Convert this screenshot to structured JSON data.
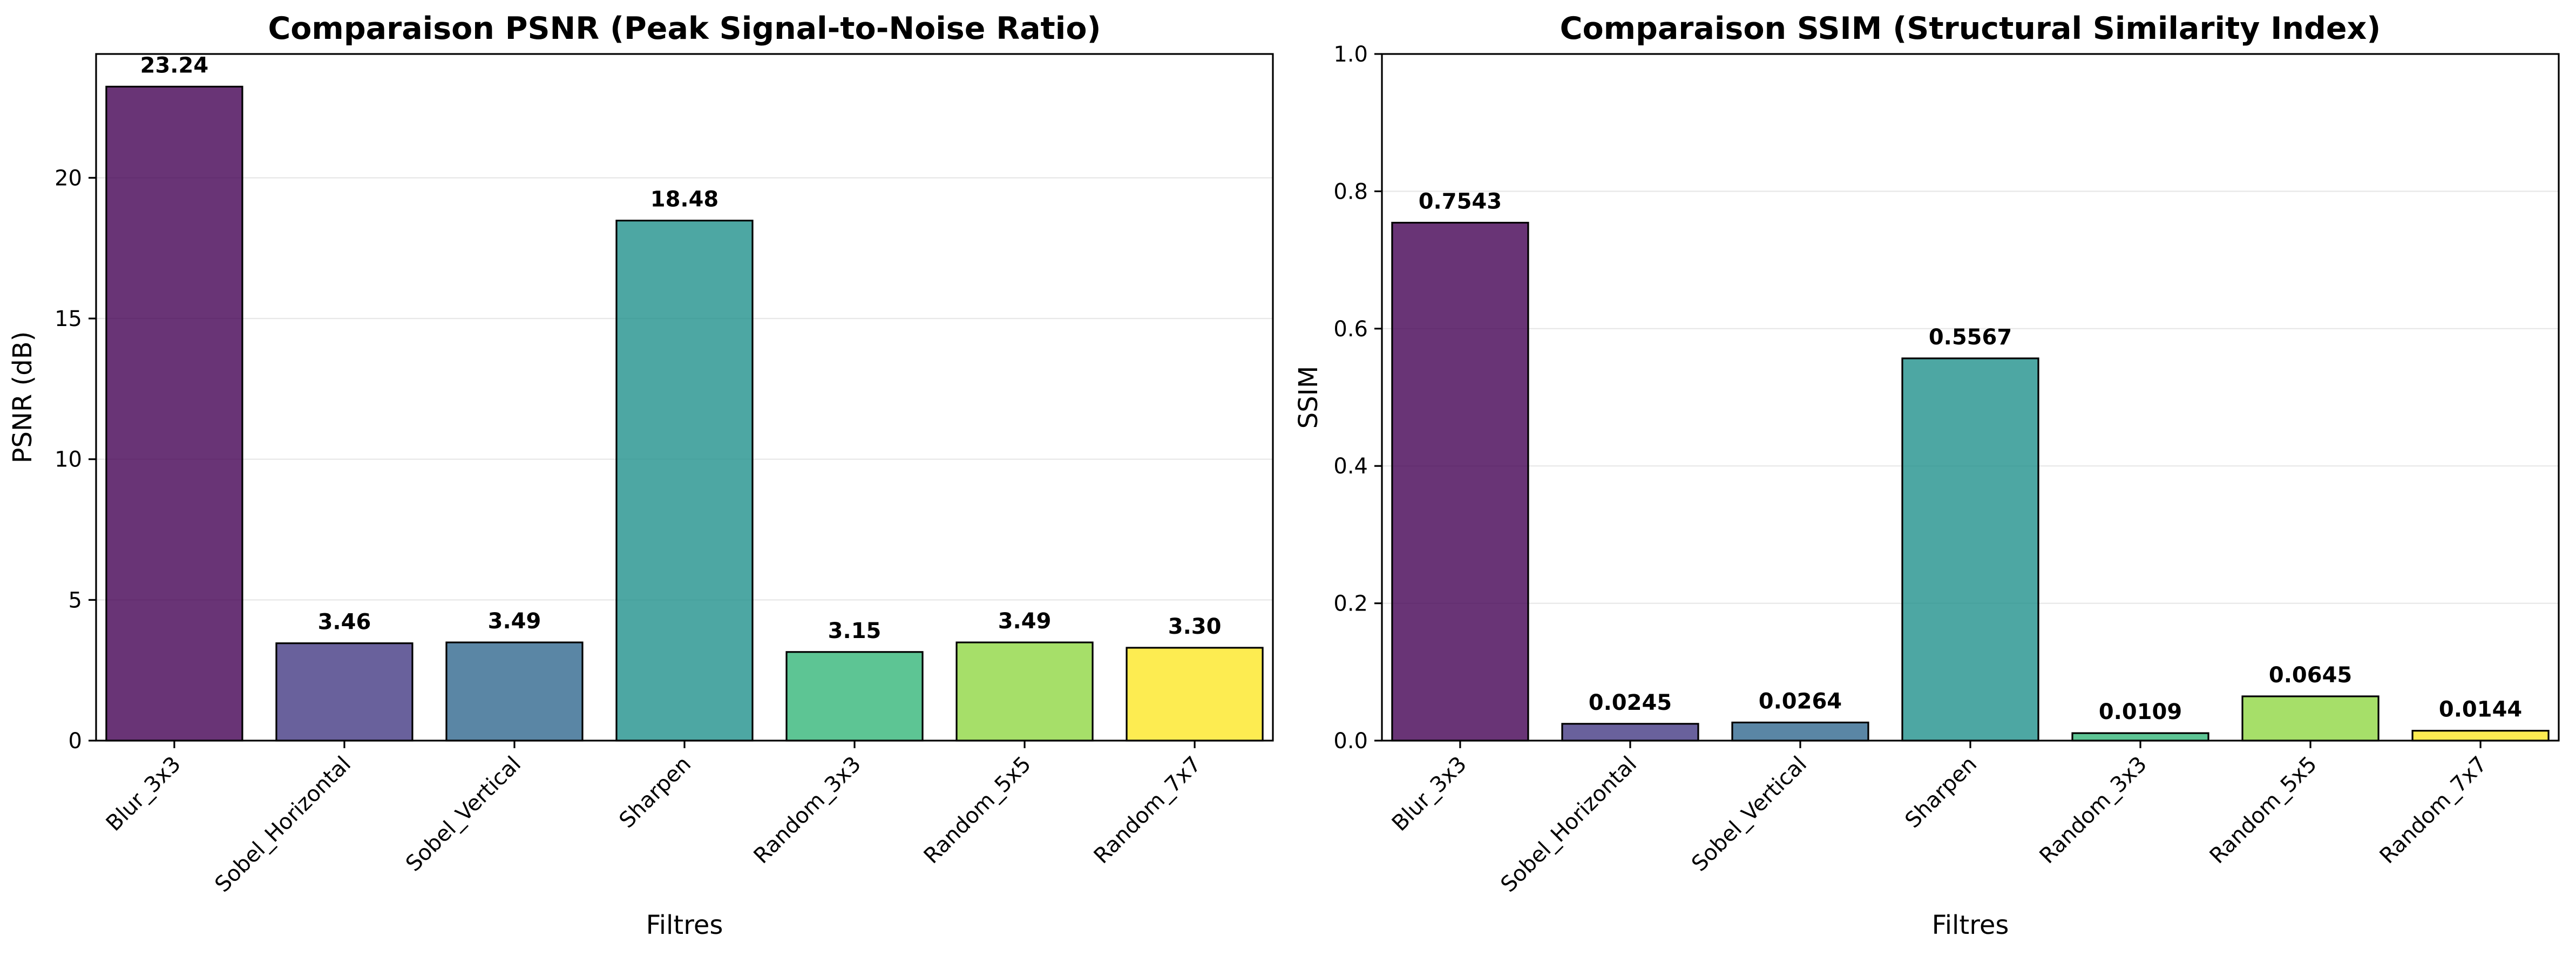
{
  "chart_data": [
    {
      "type": "bar",
      "title": "Comparaison PSNR (Peak Signal-to-Noise Ratio)",
      "xlabel": "Filtres",
      "ylabel": "PSNR (dB)",
      "categories": [
        "Blur_3x3",
        "Sobel_Horizontal",
        "Sobel_Vertical",
        "Sharpen",
        "Random_3x3",
        "Random_5x5",
        "Random_7x7"
      ],
      "values": [
        23.24,
        3.46,
        3.49,
        18.48,
        3.15,
        3.49,
        3.3
      ],
      "value_labels": [
        "23.24",
        "3.46",
        "3.49",
        "18.48",
        "3.15",
        "3.49",
        "3.30"
      ],
      "ylim": [
        0,
        24.4
      ],
      "yticks": [
        0,
        5,
        10,
        15,
        20
      ],
      "ytick_labels": [
        "0",
        "5",
        "10",
        "15",
        "20"
      ],
      "grid": true,
      "colors": [
        "#440154",
        "#443983",
        "#31688e",
        "#21918c",
        "#35b779",
        "#90d743",
        "#fde725"
      ]
    },
    {
      "type": "bar",
      "title": "Comparaison SSIM (Structural Similarity Index)",
      "xlabel": "Filtres",
      "ylabel": "SSIM",
      "categories": [
        "Blur_3x3",
        "Sobel_Horizontal",
        "Sobel_Vertical",
        "Sharpen",
        "Random_3x3",
        "Random_5x5",
        "Random_7x7"
      ],
      "values": [
        0.7543,
        0.0245,
        0.0264,
        0.5567,
        0.0109,
        0.0645,
        0.0144
      ],
      "value_labels": [
        "0.7543",
        "0.0245",
        "0.0264",
        "0.5567",
        "0.0109",
        "0.0645",
        "0.0144"
      ],
      "ylim": [
        0,
        1.0
      ],
      "yticks": [
        0.0,
        0.2,
        0.4,
        0.6,
        0.8,
        1.0
      ],
      "ytick_labels": [
        "0.0",
        "0.2",
        "0.4",
        "0.6",
        "0.8",
        "1.0"
      ],
      "grid": true,
      "colors": [
        "#440154",
        "#443983",
        "#31688e",
        "#21918c",
        "#35b779",
        "#90d743",
        "#fde725"
      ]
    }
  ]
}
